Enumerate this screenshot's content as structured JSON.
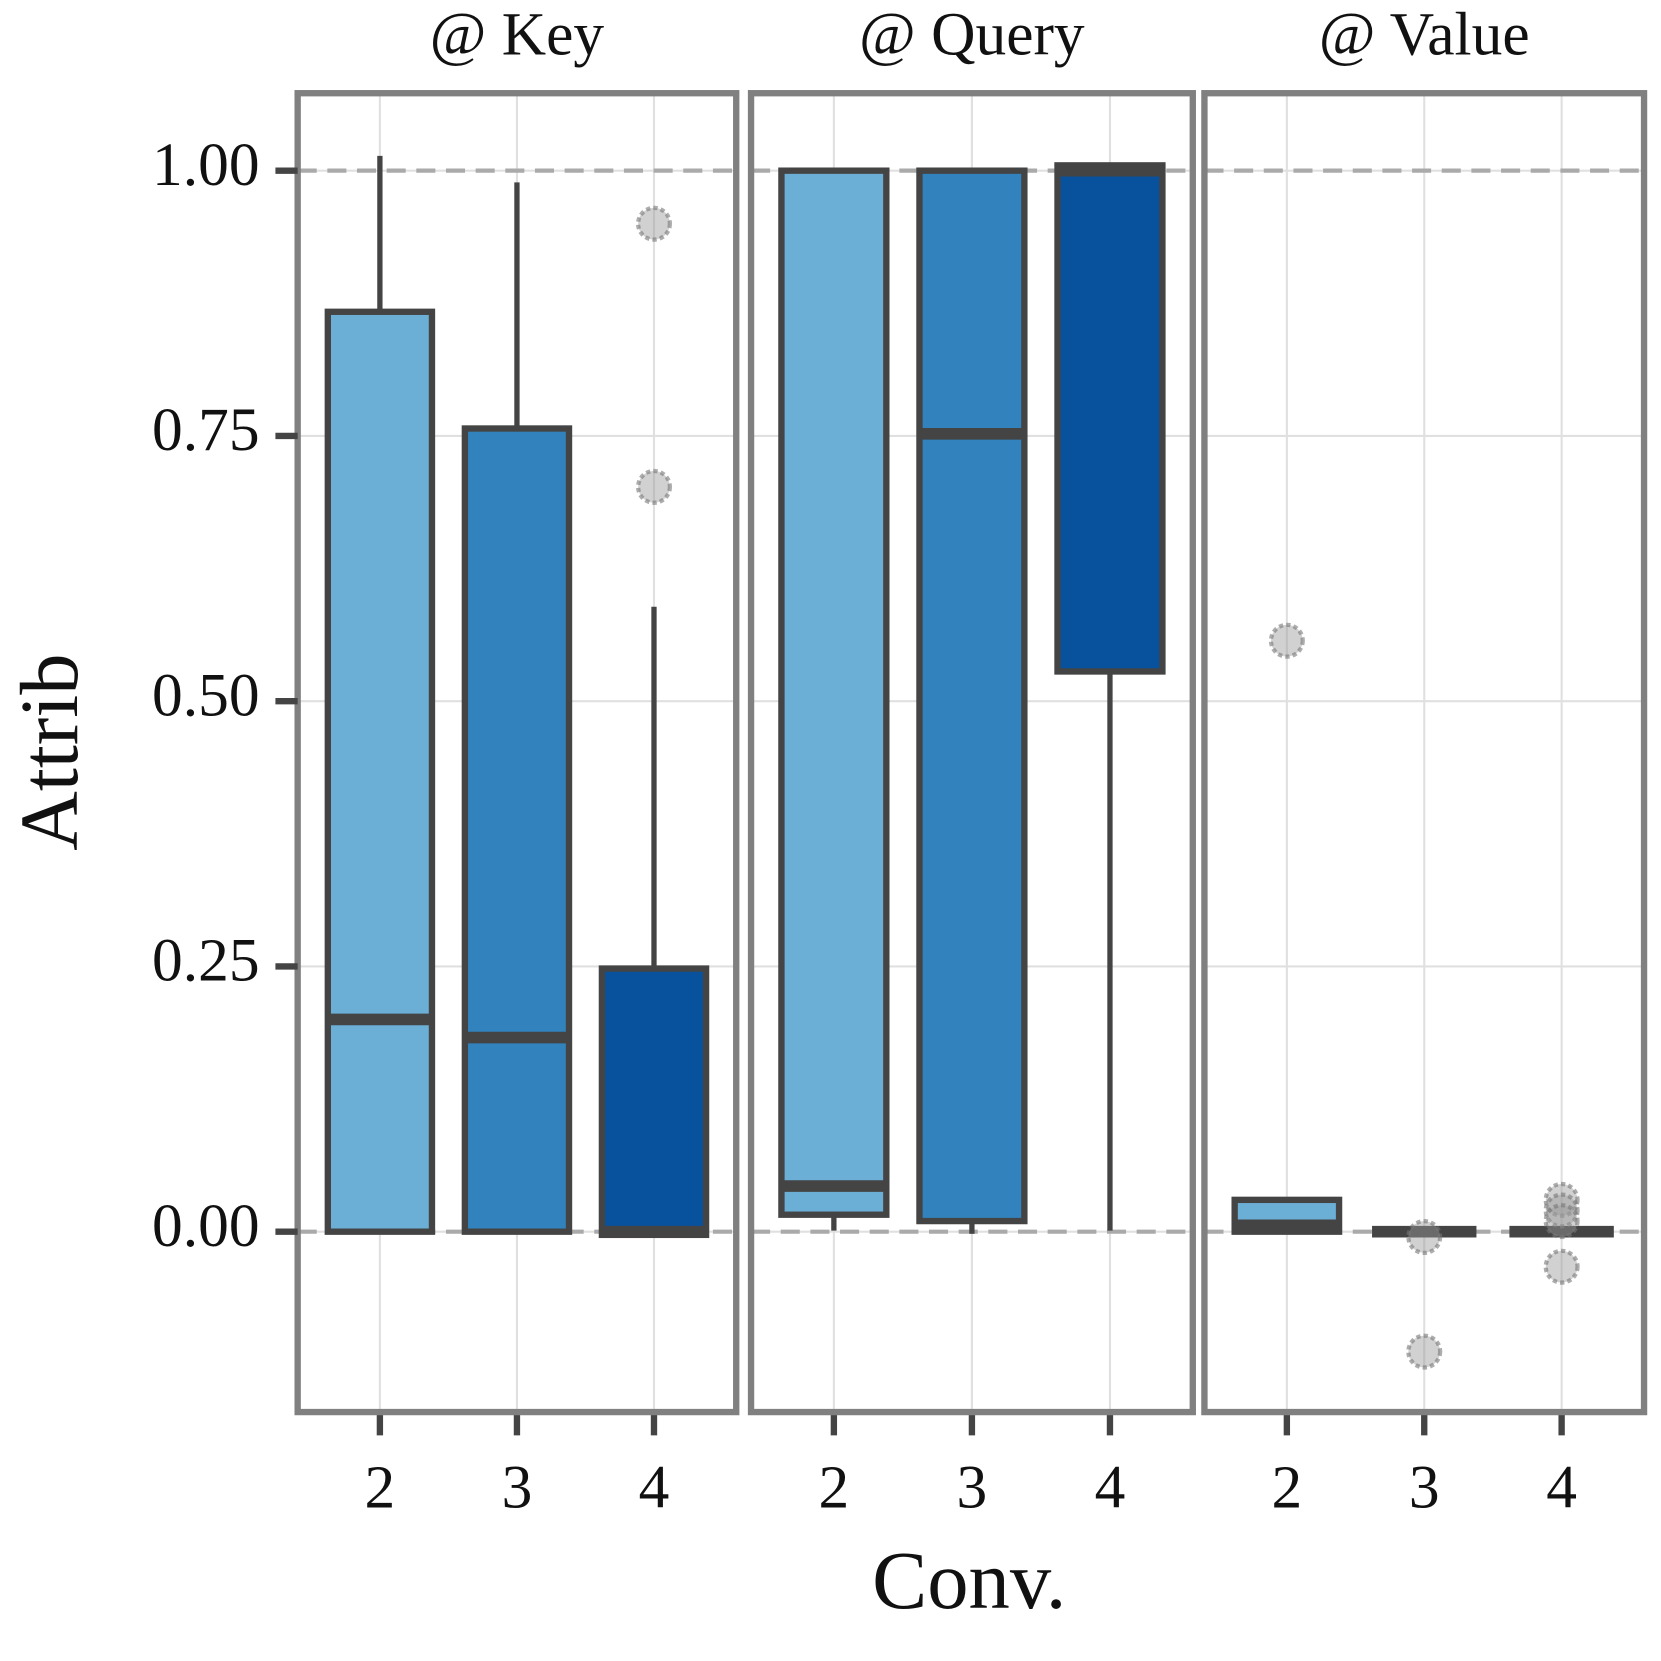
{
  "chart_data": {
    "type": "box",
    "ylabel": "Attrib",
    "xlabel": "Conv.",
    "ylim": [
      -0.17,
      1.073
    ],
    "yticks": [
      {
        "value": 0,
        "label": "0.00"
      },
      {
        "value": 0.25,
        "label": "0.25"
      },
      {
        "value": 0.5,
        "label": "0.50"
      },
      {
        "value": 0.75,
        "label": "0.75"
      },
      {
        "value": 1,
        "label": "1.00"
      }
    ],
    "reference_lines": [
      0,
      1
    ],
    "grid": true,
    "colors": [
      "#6baed6",
      "#3182bd",
      "#08519c"
    ],
    "panels": [
      {
        "title": "@ Key",
        "categories": [
          "2",
          "3",
          "4"
        ],
        "boxes": [
          {
            "min": 0,
            "q1": 0,
            "median": 0.2,
            "q3": 0.867,
            "max": 1.014,
            "outliers": []
          },
          {
            "min": 0,
            "q1": 0,
            "median": 0.183,
            "q3": 0.757,
            "max": 0.989,
            "outliers": []
          },
          {
            "min": -0.003,
            "q1": -0.003,
            "median": 0,
            "q3": 0.248,
            "max": 0.589,
            "outliers": [
              0.95,
              0.702
            ]
          }
        ]
      },
      {
        "title": "@ Query",
        "categories": [
          "2",
          "3",
          "4"
        ],
        "boxes": [
          {
            "min": 0.001,
            "q1": 0.016,
            "median": 0.043,
            "q3": 1.0,
            "max": 1.0,
            "outliers": []
          },
          {
            "min": -0.002,
            "q1": 0.01,
            "median": 0.752,
            "q3": 1.0,
            "max": 1.0,
            "outliers": []
          },
          {
            "min": 0.001,
            "q1": 0.528,
            "median": 1.0,
            "q3": 1.005,
            "max": 1.005,
            "outliers": []
          }
        ]
      },
      {
        "title": "@ Value",
        "categories": [
          "2",
          "3",
          "4"
        ],
        "boxes": [
          {
            "min": 0,
            "q1": 0,
            "median": 0.006,
            "q3": 0.03,
            "max": 0.03,
            "outliers": [
              0.557
            ]
          },
          {
            "min": 0,
            "q1": 0,
            "median": 0,
            "q3": 0,
            "max": 0,
            "outliers": [
              -0.005,
              -0.113
            ]
          },
          {
            "min": 0,
            "q1": 0,
            "median": 0,
            "q3": 0,
            "max": 0,
            "outliers": [
              0.03,
              0.02,
              0.01,
              -0.033
            ]
          }
        ]
      }
    ]
  }
}
